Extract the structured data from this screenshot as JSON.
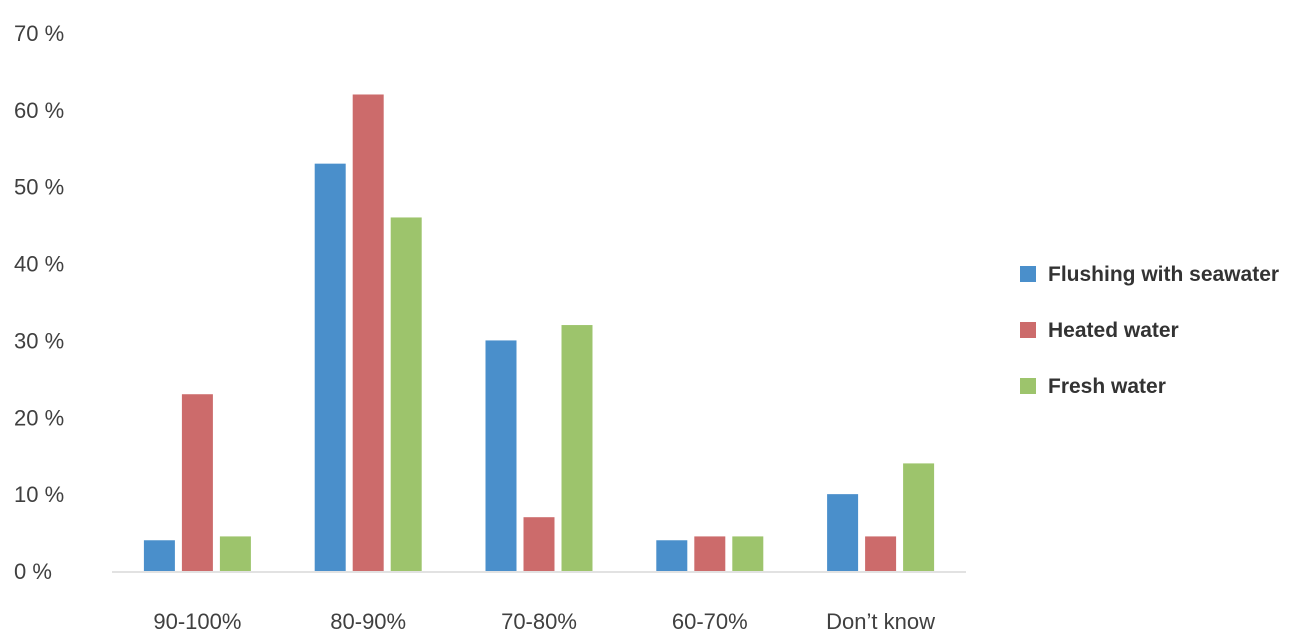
{
  "chart_data": {
    "type": "bar",
    "title": "",
    "xlabel": "",
    "ylabel": "",
    "categories": [
      "90-100%",
      "80-90%",
      "70-80%",
      "60-70%",
      "Don’t know"
    ],
    "series": [
      {
        "name": "Flushing with seawater",
        "color": "#4a8fcb",
        "values": [
          4,
          53,
          30,
          4,
          10
        ]
      },
      {
        "name": "Heated water",
        "color": "#cc6b6b",
        "values": [
          23,
          62,
          7,
          4.5,
          4.5
        ]
      },
      {
        "name": "Fresh water",
        "color": "#9dc46c",
        "values": [
          4.5,
          46,
          32,
          4.5,
          14
        ]
      }
    ],
    "ylim": [
      0,
      70
    ],
    "yticks": [
      0,
      10,
      20,
      30,
      40,
      50,
      60,
      70
    ],
    "ytick_labels": [
      "0 %",
      "10 %",
      "20 %",
      "30 %",
      "40 %",
      "50 %",
      "60 %",
      "70 %"
    ],
    "grid": false,
    "legend_position": "right"
  }
}
